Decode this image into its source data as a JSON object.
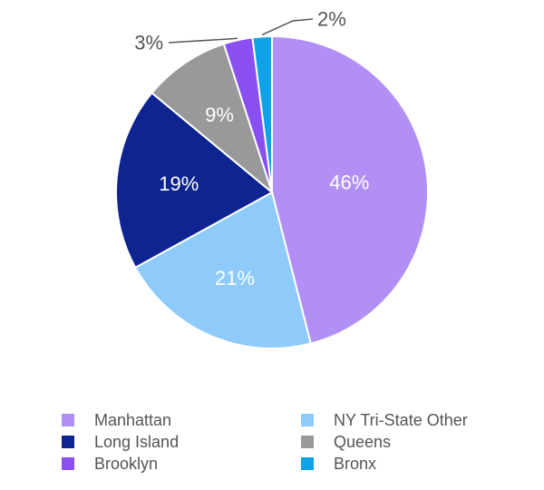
{
  "chart_data": {
    "type": "pie",
    "slices": [
      {
        "label": "Manhattan",
        "value": 46,
        "display": "46%",
        "color": "#b28ff5"
      },
      {
        "label": "NY Tri-State Other",
        "value": 21,
        "display": "21%",
        "color": "#8ecbfb"
      },
      {
        "label": "Long Island",
        "value": 19,
        "display": "19%",
        "color": "#0e2491"
      },
      {
        "label": "Queens",
        "value": 9,
        "display": "9%",
        "color": "#999999"
      },
      {
        "label": "Brooklyn",
        "value": 3,
        "display": "3%",
        "color": "#8a4ff0"
      },
      {
        "label": "Bronx",
        "value": 2,
        "display": "2%",
        "color": "#0ea2e6"
      }
    ],
    "legend_placement": "bottom"
  }
}
